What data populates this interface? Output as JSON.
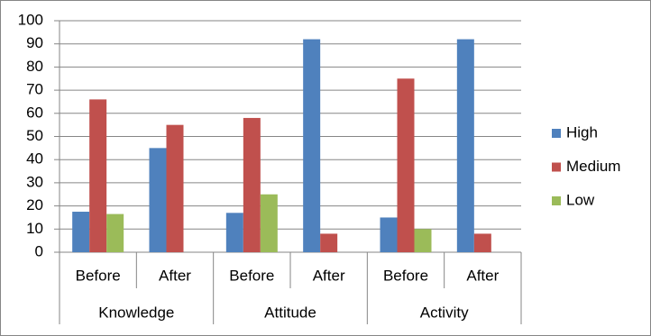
{
  "chart_data": {
    "type": "bar",
    "categories": [
      "Before",
      "After",
      "Before",
      "After",
      "Before",
      "After"
    ],
    "groups": [
      "Knowledge",
      "Attitude",
      "Activity"
    ],
    "series": [
      {
        "name": "High",
        "color": "#4f81bd",
        "values": [
          17.5,
          45,
          17,
          92,
          15,
          92
        ]
      },
      {
        "name": "Medium",
        "color": "#c0504d",
        "values": [
          66,
          55,
          58,
          8,
          75,
          8
        ]
      },
      {
        "name": "Low",
        "color": "#9bbb59",
        "values": [
          16.5,
          0,
          25,
          0,
          10,
          0
        ]
      }
    ],
    "ylim": [
      0,
      100
    ],
    "yticks": [
      0,
      10,
      20,
      30,
      40,
      50,
      60,
      70,
      80,
      90,
      100
    ],
    "grid": true,
    "legend": "right"
  }
}
